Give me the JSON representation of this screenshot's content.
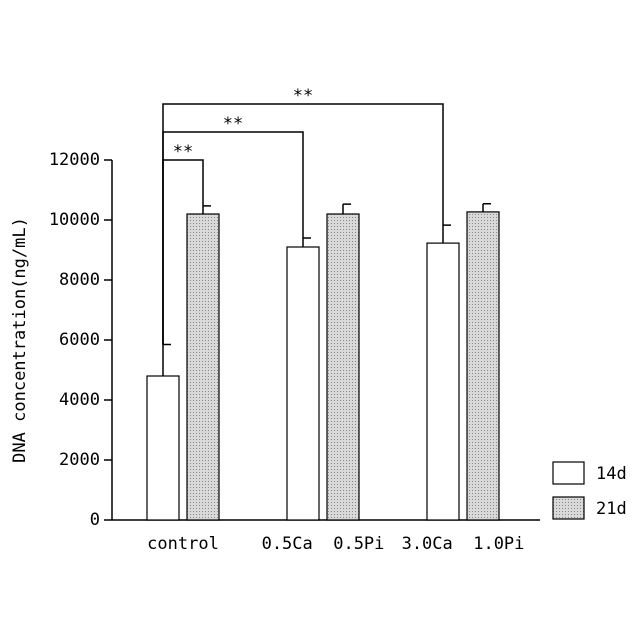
{
  "chart_data": {
    "type": "bar",
    "y_label": "DNA concentration(ng/mL)",
    "categories": [
      "control",
      "0.5Ca  0.5Pi",
      "3.0Ca  1.0Pi"
    ],
    "series": [
      {
        "name": "14d",
        "color": "#ffffff",
        "values": [
          4800,
          9100,
          9230
        ],
        "errors": [
          1050,
          300,
          600
        ]
      },
      {
        "name": "21d",
        "color": "#d9d9d9",
        "values": [
          10200,
          10200,
          10270
        ],
        "errors": [
          270,
          330,
          270
        ]
      }
    ],
    "significance": [
      "**",
      "**",
      "**"
    ],
    "ylim": [
      0,
      12000
    ],
    "yticks": [
      0,
      2000,
      4000,
      6000,
      8000,
      10000,
      12000
    ],
    "legend": "bottom-right"
  }
}
